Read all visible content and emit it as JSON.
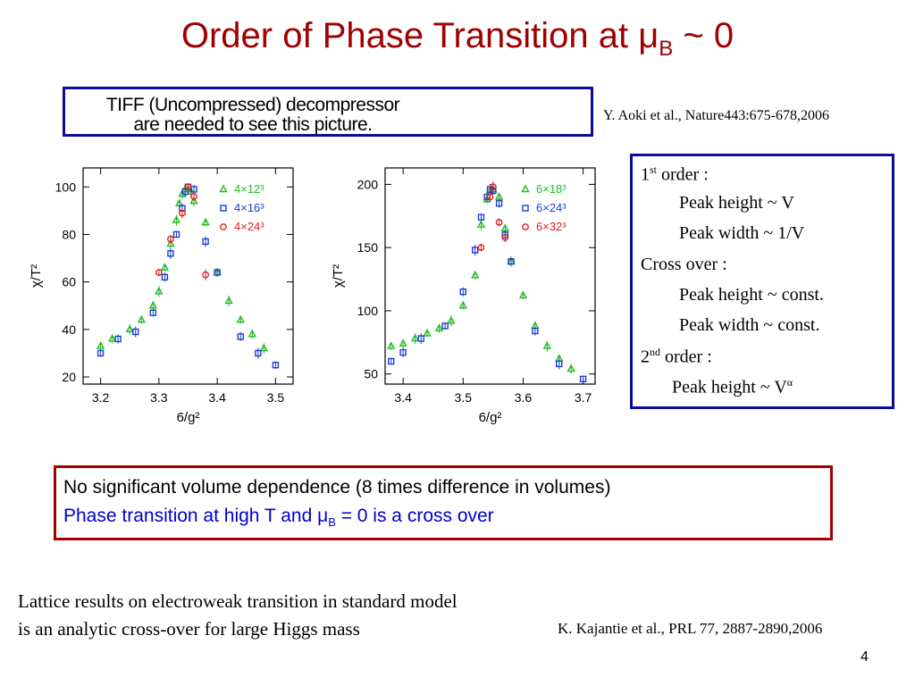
{
  "slide": {
    "title_main": "Order of Phase Transition at μ",
    "title_sub": "B",
    "title_tail": " ~ 0",
    "tiff_line1": "TIFF (Uncompressed) decompressor",
    "tiff_line2": "are needed to see this picture.",
    "citation_aoki": "Y. Aoki et al., Nature443:675-678,2006",
    "order_box": {
      "l1_pre": "1",
      "l1_sup": "st",
      "l1_post": " order :",
      "l2": "Peak height ~ V",
      "l3": "Peak width ~ 1/V",
      "l4": "Cross over :",
      "l5": "Peak height ~ const.",
      "l6": "Peak width ~ const.",
      "l7_pre": "2",
      "l7_sup": "nd",
      "l7_post": " order :",
      "l8_pre": "Peak height ~ V",
      "l8_sup": "α"
    },
    "red_box": {
      "line1": "No significant volume dependence (8 times difference in volumes)",
      "line2_pre": "Phase transition at high T and μ",
      "line2_sub": "B",
      "line2_post": " = 0 is a cross over"
    },
    "lattice_line1": "Lattice results on electroweak transition in standard model",
    "lattice_line2": "is an analytic cross-over for large Higgs mass",
    "citation_kajantie": "K. Kajantie et al., PRL 77, 2887-2890,2006",
    "page_number": "4"
  },
  "colors": {
    "title": "#a00000",
    "box_blue": "#0b0b9a",
    "red_box": "#a00000",
    "line2": "#0000cc",
    "green": "#22bb22",
    "blue": "#1a3fd4",
    "red": "#e02020"
  },
  "chart_data": [
    {
      "type": "scatter",
      "xlabel": "6/g²",
      "ylabel": "χ/T²",
      "xlim": [
        3.17,
        3.53
      ],
      "ylim": [
        17,
        108
      ],
      "xticks": [
        "3.2",
        "3.3",
        "3.4",
        "3.5"
      ],
      "yticks": [
        "20",
        "40",
        "60",
        "80",
        "100"
      ],
      "legend_position": "top-right",
      "series": [
        {
          "name": "4×12³",
          "marker": "triangle",
          "color": "#22bb22",
          "x": [
            3.2,
            3.22,
            3.25,
            3.27,
            3.29,
            3.3,
            3.31,
            3.32,
            3.33,
            3.335,
            3.34,
            3.345,
            3.35,
            3.355,
            3.36,
            3.38,
            3.4,
            3.42,
            3.44,
            3.46,
            3.48
          ],
          "y": [
            33,
            36,
            40,
            44,
            50,
            56,
            66,
            76,
            86,
            93,
            97,
            99,
            99,
            98,
            94,
            85,
            64,
            52,
            44,
            38,
            32
          ]
        },
        {
          "name": "4×16³",
          "marker": "square",
          "color": "#1a3fd4",
          "x": [
            3.2,
            3.23,
            3.26,
            3.29,
            3.31,
            3.32,
            3.33,
            3.34,
            3.345,
            3.35,
            3.36,
            3.38,
            3.4,
            3.44,
            3.47,
            3.5
          ],
          "y": [
            30,
            36,
            39,
            47,
            62,
            72,
            80,
            91,
            98,
            100,
            99,
            77,
            64,
            37,
            30,
            25
          ]
        },
        {
          "name": "4×24³",
          "marker": "circle",
          "color": "#e02020",
          "x": [
            3.3,
            3.32,
            3.34,
            3.35,
            3.36,
            3.38
          ],
          "y": [
            64,
            78,
            89,
            100,
            96,
            63
          ]
        }
      ]
    },
    {
      "type": "scatter",
      "xlabel": "6/g²",
      "ylabel": "χ/T²",
      "xlim": [
        3.37,
        3.72
      ],
      "ylim": [
        42,
        213
      ],
      "xticks": [
        "3.4",
        "3.5",
        "3.6",
        "3.7"
      ],
      "yticks": [
        "50",
        "100",
        "150",
        "200"
      ],
      "legend_position": "top-right",
      "series": [
        {
          "name": "6×18³",
          "marker": "triangle",
          "color": "#22bb22",
          "x": [
            3.38,
            3.4,
            3.42,
            3.44,
            3.46,
            3.48,
            3.5,
            3.52,
            3.53,
            3.54,
            3.545,
            3.55,
            3.56,
            3.57,
            3.58,
            3.6,
            3.62,
            3.64,
            3.66,
            3.68
          ],
          "y": [
            72,
            74,
            78,
            82,
            86,
            92,
            104,
            128,
            168,
            188,
            195,
            196,
            190,
            165,
            139,
            112,
            88,
            72,
            62,
            54
          ]
        },
        {
          "name": "6×24³",
          "marker": "square",
          "color": "#1a3fd4",
          "x": [
            3.38,
            3.4,
            3.43,
            3.47,
            3.5,
            3.52,
            3.53,
            3.54,
            3.545,
            3.55,
            3.56,
            3.57,
            3.58,
            3.62,
            3.66,
            3.7
          ],
          "y": [
            60,
            67,
            78,
            88,
            115,
            148,
            174,
            190,
            196,
            195,
            185,
            160,
            139,
            84,
            58,
            46
          ]
        },
        {
          "name": "6×32³",
          "marker": "circle",
          "color": "#e02020",
          "x": [
            3.53,
            3.545,
            3.55,
            3.56,
            3.57
          ],
          "y": [
            150,
            190,
            198,
            170,
            158
          ]
        }
      ]
    }
  ]
}
